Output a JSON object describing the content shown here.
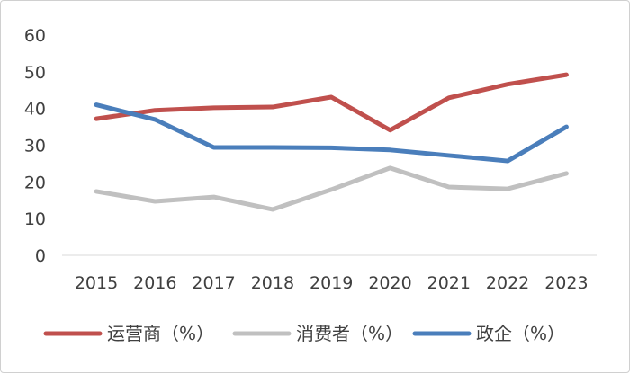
{
  "chart_data": {
    "type": "line",
    "categories": [
      "2015",
      "2016",
      "2017",
      "2018",
      "2019",
      "2020",
      "2021",
      "2022",
      "2023"
    ],
    "ylim": [
      0,
      60
    ],
    "yticks": [
      "0",
      "10",
      "20",
      "30",
      "40",
      "50",
      "60"
    ],
    "grid": false,
    "legend_position": "bottom",
    "series": [
      {
        "name": "运营商（%）",
        "color": "#c0504d",
        "values": [
          37.2,
          39.5,
          40.2,
          40.4,
          43.1,
          34.1,
          42.9,
          46.6,
          49.2
        ]
      },
      {
        "name": "消费者（%）",
        "color": "#c0c0c0",
        "values": [
          17.4,
          14.7,
          15.9,
          12.5,
          17.9,
          23.8,
          18.6,
          18.1,
          22.3
        ]
      },
      {
        "name": "政企（%）",
        "color": "#4a7ebb",
        "values": [
          41.0,
          37.0,
          29.4,
          29.4,
          29.3,
          28.7,
          27.2,
          25.7,
          35.0
        ]
      }
    ]
  }
}
